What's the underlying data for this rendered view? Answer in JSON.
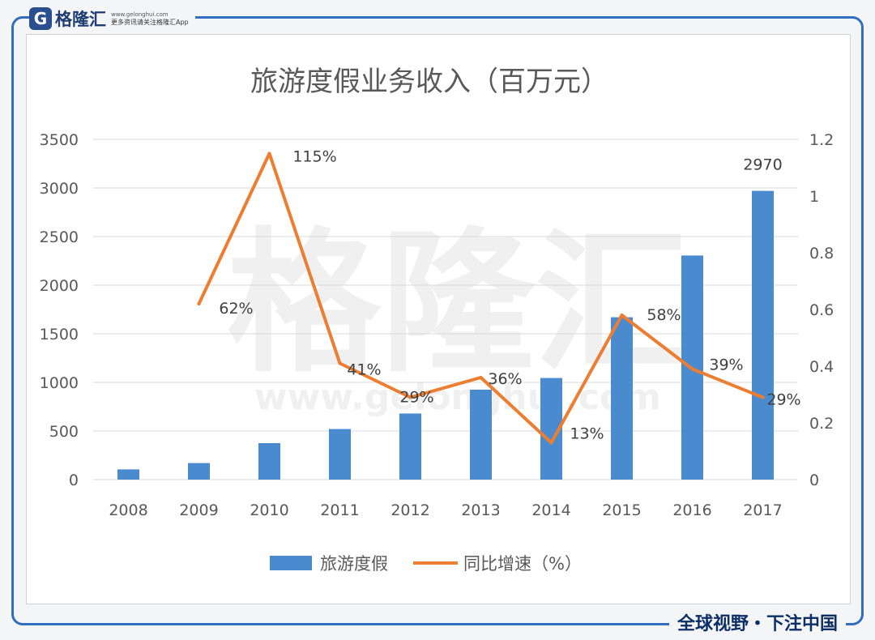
{
  "branding": {
    "logo_letter": "G",
    "logo_name": "格隆汇",
    "logo_url": "www.gelonghui.com",
    "logo_tagline": "更多资讯请关注格隆汇App",
    "watermark_text": "格隆汇",
    "watermark_url": "www.gelonghui.com",
    "footer_slogan": "全球视野・下注中国"
  },
  "colors": {
    "bar": "#4a8bd0",
    "line": "#ed7d31",
    "frame": "#2f6fbe",
    "text": "#595959"
  },
  "chart_data": {
    "type": "bar",
    "title": "旅游度假业务收入（百万元）",
    "categories": [
      "2008",
      "2009",
      "2010",
      "2011",
      "2012",
      "2013",
      "2014",
      "2015",
      "2016",
      "2017"
    ],
    "ylim": [
      0,
      3500
    ],
    "y_ticks": [
      "0",
      "500",
      "1000",
      "1500",
      "2000",
      "2500",
      "3000",
      "3500"
    ],
    "y2lim": [
      0,
      1.2
    ],
    "y2_ticks": [
      "0",
      "0.2",
      "0.4",
      "0.6",
      "0.8",
      "1",
      "1.2"
    ],
    "grid": true,
    "legend_position": "bottom",
    "series": [
      {
        "name": "旅游度假",
        "type": "bar",
        "axis": "left",
        "values": [
          105,
          170,
          375,
          520,
          680,
          925,
          1045,
          1670,
          2305,
          2970
        ],
        "labels": [
          "",
          "",
          "",
          "",
          "",
          "",
          "",
          "",
          "",
          "2970"
        ]
      },
      {
        "name": "同比增速（%）",
        "type": "line",
        "axis": "right",
        "values": [
          null,
          0.62,
          1.15,
          0.41,
          0.29,
          0.36,
          0.13,
          0.58,
          0.39,
          0.29
        ],
        "labels": [
          "",
          "62%",
          "115%",
          "41%",
          "29%",
          "36%",
          "13%",
          "58%",
          "39%",
          "29%"
        ]
      }
    ]
  }
}
